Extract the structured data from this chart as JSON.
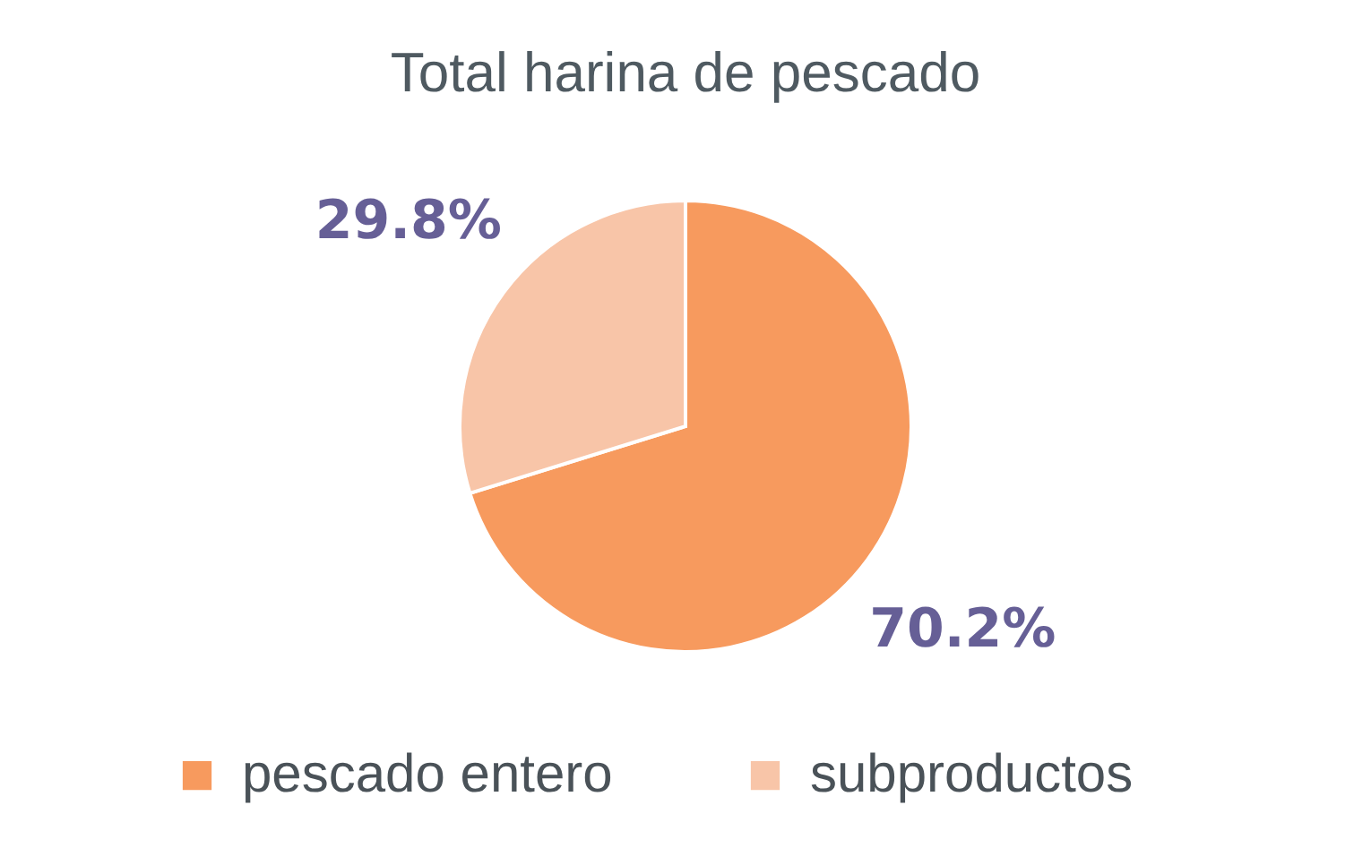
{
  "chart_data": {
    "type": "pie",
    "title": "Total harina de pescado",
    "categories": [
      "pescado entero",
      "subproductos"
    ],
    "values": [
      70.2,
      29.8
    ],
    "colors": [
      "#f79a5e",
      "#f8c5a8"
    ],
    "value_labels": [
      "70.2%",
      "29.8%"
    ],
    "legend": "bottom"
  }
}
